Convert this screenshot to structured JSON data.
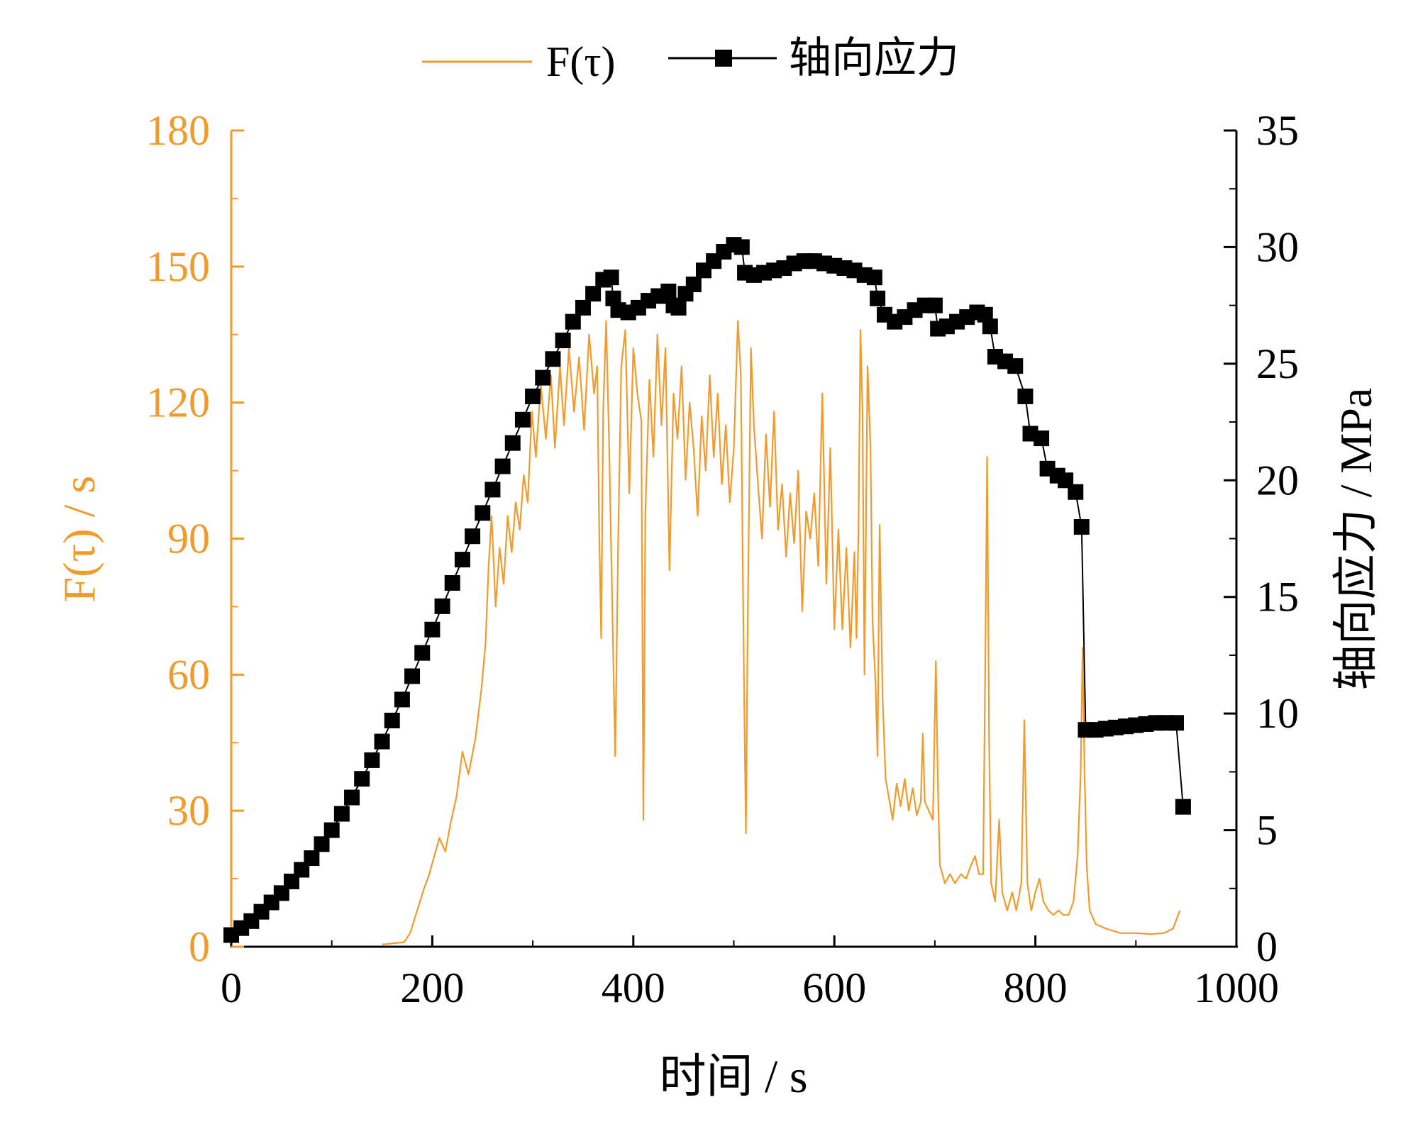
{
  "colors": {
    "orange": "#F39A2B",
    "black": "#000000"
  },
  "legend": {
    "orange_label": "F(τ)",
    "black_label": "轴向应力"
  },
  "chart_data": {
    "type": "line",
    "xlabel": "时间 / s",
    "xlim": [
      0,
      1000
    ],
    "x_ticks": [
      "0",
      "200",
      "400",
      "600",
      "800",
      "1000"
    ],
    "left_axis": {
      "label": "F(τ) / s",
      "ylim": [
        0,
        180
      ],
      "ticks": [
        "0",
        "30",
        "60",
        "90",
        "120",
        "150",
        "180"
      ]
    },
    "right_axis": {
      "label": "轴向应力 / MPa",
      "ylim": [
        0,
        35
      ],
      "ticks": [
        "0",
        "5",
        "10",
        "15",
        "20",
        "25",
        "30",
        "35"
      ]
    },
    "series": [
      {
        "name": "F(τ)",
        "axis": "left",
        "color": "#F39A2B",
        "points": [
          [
            150,
            0.5
          ],
          [
            172,
            1
          ],
          [
            178,
            3
          ],
          [
            185,
            8
          ],
          [
            192,
            13
          ],
          [
            197,
            16
          ],
          [
            202,
            20
          ],
          [
            207,
            24
          ],
          [
            213,
            21
          ],
          [
            218,
            27
          ],
          [
            224,
            33
          ],
          [
            230,
            43
          ],
          [
            236,
            38
          ],
          [
            243,
            46
          ],
          [
            249,
            57
          ],
          [
            253,
            67
          ],
          [
            256,
            84
          ],
          [
            259,
            95
          ],
          [
            263,
            75
          ],
          [
            267,
            88
          ],
          [
            271,
            80
          ],
          [
            275,
            95
          ],
          [
            279,
            87
          ],
          [
            283,
            98
          ],
          [
            287,
            92
          ],
          [
            291,
            104
          ],
          [
            295,
            98
          ],
          [
            299,
            118
          ],
          [
            303,
            108
          ],
          [
            308,
            124
          ],
          [
            313,
            112
          ],
          [
            318,
            126
          ],
          [
            322,
            110
          ],
          [
            327,
            128
          ],
          [
            331,
            115
          ],
          [
            336,
            132
          ],
          [
            341,
            118
          ],
          [
            346,
            130
          ],
          [
            351,
            114
          ],
          [
            356,
            135
          ],
          [
            361,
            122
          ],
          [
            364,
            128
          ],
          [
            366,
            93
          ],
          [
            368,
            68
          ],
          [
            370,
            118
          ],
          [
            373,
            138
          ],
          [
            376,
            110
          ],
          [
            379,
            76
          ],
          [
            382,
            42
          ],
          [
            385,
            90
          ],
          [
            388,
            128
          ],
          [
            392,
            136
          ],
          [
            396,
            100
          ],
          [
            400,
            132
          ],
          [
            404,
            122
          ],
          [
            408,
            116
          ],
          [
            410,
            28
          ],
          [
            412,
            96
          ],
          [
            416,
            125
          ],
          [
            420,
            108
          ],
          [
            424,
            135
          ],
          [
            428,
            115
          ],
          [
            432,
            132
          ],
          [
            436,
            83
          ],
          [
            440,
            122
          ],
          [
            444,
            112
          ],
          [
            448,
            128
          ],
          [
            452,
            103
          ],
          [
            456,
            120
          ],
          [
            460,
            110
          ],
          [
            464,
            95
          ],
          [
            468,
            117
          ],
          [
            472,
            105
          ],
          [
            476,
            126
          ],
          [
            480,
            108
          ],
          [
            484,
            122
          ],
          [
            488,
            102
          ],
          [
            492,
            115
          ],
          [
            496,
            98
          ],
          [
            500,
            110
          ],
          [
            504,
            138
          ],
          [
            507,
            126
          ],
          [
            510,
            60
          ],
          [
            512,
            25
          ],
          [
            514,
            75
          ],
          [
            517,
            132
          ],
          [
            520,
            115
          ],
          [
            524,
            102
          ],
          [
            528,
            90
          ],
          [
            532,
            113
          ],
          [
            536,
            97
          ],
          [
            540,
            118
          ],
          [
            544,
            92
          ],
          [
            548,
            102
          ],
          [
            552,
            86
          ],
          [
            556,
            100
          ],
          [
            560,
            89
          ],
          [
            564,
            105
          ],
          [
            568,
            74
          ],
          [
            572,
            96
          ],
          [
            576,
            90
          ],
          [
            580,
            100
          ],
          [
            584,
            84
          ],
          [
            588,
            122
          ],
          [
            592,
            80
          ],
          [
            596,
            110
          ],
          [
            600,
            70
          ],
          [
            604,
            92
          ],
          [
            608,
            70
          ],
          [
            612,
            88
          ],
          [
            616,
            66
          ],
          [
            620,
            87
          ],
          [
            622,
            68
          ],
          [
            624,
            92
          ],
          [
            626,
            136
          ],
          [
            628,
            118
          ],
          [
            630,
            60
          ],
          [
            633,
            128
          ],
          [
            636,
            110
          ],
          [
            638,
            72
          ],
          [
            641,
            58
          ],
          [
            643,
            42
          ],
          [
            645,
            93
          ],
          [
            648,
            55
          ],
          [
            651,
            37
          ],
          [
            655,
            32
          ],
          [
            658,
            28
          ],
          [
            662,
            36
          ],
          [
            666,
            31
          ],
          [
            670,
            37
          ],
          [
            674,
            30
          ],
          [
            678,
            35
          ],
          [
            682,
            29
          ],
          [
            686,
            32
          ],
          [
            688,
            47
          ],
          [
            690,
            32
          ],
          [
            694,
            30
          ],
          [
            698,
            28
          ],
          [
            701,
            63
          ],
          [
            703,
            35
          ],
          [
            705,
            18
          ],
          [
            710,
            14
          ],
          [
            715,
            16
          ],
          [
            720,
            14
          ],
          [
            726,
            16
          ],
          [
            731,
            15
          ],
          [
            736,
            18
          ],
          [
            740,
            20
          ],
          [
            744,
            16
          ],
          [
            748,
            16
          ],
          [
            750,
            60
          ],
          [
            752,
            108
          ],
          [
            754,
            45
          ],
          [
            756,
            14
          ],
          [
            760,
            10
          ],
          [
            764,
            28
          ],
          [
            767,
            12
          ],
          [
            772,
            8
          ],
          [
            777,
            12
          ],
          [
            781,
            8
          ],
          [
            786,
            14
          ],
          [
            789,
            50
          ],
          [
            792,
            14
          ],
          [
            796,
            8
          ],
          [
            800,
            12
          ],
          [
            804,
            15
          ],
          [
            808,
            10
          ],
          [
            813,
            8
          ],
          [
            818,
            7
          ],
          [
            823,
            8
          ],
          [
            828,
            7
          ],
          [
            833,
            7
          ],
          [
            838,
            10
          ],
          [
            842,
            20
          ],
          [
            845,
            38
          ],
          [
            847,
            66
          ],
          [
            849,
            38
          ],
          [
            851,
            18
          ],
          [
            854,
            8
          ],
          [
            860,
            5
          ],
          [
            870,
            4
          ],
          [
            885,
            3
          ],
          [
            900,
            3
          ],
          [
            915,
            2.8
          ],
          [
            928,
            3
          ],
          [
            937,
            4
          ],
          [
            942,
            7
          ],
          [
            944,
            8
          ]
        ]
      },
      {
        "name": "轴向应力",
        "axis": "right",
        "color": "#000000",
        "points": [
          [
            0,
            0.5
          ],
          [
            10,
            0.8
          ],
          [
            20,
            1.1
          ],
          [
            30,
            1.5
          ],
          [
            40,
            1.9
          ],
          [
            50,
            2.3
          ],
          [
            60,
            2.8
          ],
          [
            70,
            3.3
          ],
          [
            80,
            3.8
          ],
          [
            90,
            4.4
          ],
          [
            100,
            5.0
          ],
          [
            110,
            5.7
          ],
          [
            120,
            6.4
          ],
          [
            130,
            7.2
          ],
          [
            140,
            8.0
          ],
          [
            150,
            8.8
          ],
          [
            160,
            9.7
          ],
          [
            170,
            10.6
          ],
          [
            180,
            11.6
          ],
          [
            190,
            12.6
          ],
          [
            200,
            13.6
          ],
          [
            210,
            14.6
          ],
          [
            220,
            15.6
          ],
          [
            230,
            16.6
          ],
          [
            240,
            17.6
          ],
          [
            250,
            18.6
          ],
          [
            260,
            19.6
          ],
          [
            270,
            20.6
          ],
          [
            280,
            21.6
          ],
          [
            290,
            22.6
          ],
          [
            300,
            23.6
          ],
          [
            310,
            24.4
          ],
          [
            320,
            25.2
          ],
          [
            330,
            26.0
          ],
          [
            340,
            26.8
          ],
          [
            350,
            27.4
          ],
          [
            360,
            28.0
          ],
          [
            370,
            28.6
          ],
          [
            378,
            28.7
          ],
          [
            380,
            27.8
          ],
          [
            385,
            27.3
          ],
          [
            395,
            27.2
          ],
          [
            405,
            27.4
          ],
          [
            415,
            27.7
          ],
          [
            425,
            27.9
          ],
          [
            435,
            28.1
          ],
          [
            440,
            27.5
          ],
          [
            445,
            27.4
          ],
          [
            452,
            28.0
          ],
          [
            460,
            28.4
          ],
          [
            470,
            29.0
          ],
          [
            480,
            29.4
          ],
          [
            490,
            29.8
          ],
          [
            500,
            30.1
          ],
          [
            508,
            30.0
          ],
          [
            511,
            28.9
          ],
          [
            520,
            28.8
          ],
          [
            530,
            28.9
          ],
          [
            540,
            29.0
          ],
          [
            550,
            29.1
          ],
          [
            560,
            29.3
          ],
          [
            570,
            29.4
          ],
          [
            580,
            29.4
          ],
          [
            590,
            29.3
          ],
          [
            600,
            29.2
          ],
          [
            610,
            29.1
          ],
          [
            620,
            29.0
          ],
          [
            630,
            28.8
          ],
          [
            640,
            28.7
          ],
          [
            643,
            27.8
          ],
          [
            650,
            27.1
          ],
          [
            660,
            26.8
          ],
          [
            670,
            27.0
          ],
          [
            680,
            27.3
          ],
          [
            690,
            27.5
          ],
          [
            700,
            27.5
          ],
          [
            703,
            26.5
          ],
          [
            712,
            26.6
          ],
          [
            722,
            26.8
          ],
          [
            732,
            27.0
          ],
          [
            742,
            27.2
          ],
          [
            750,
            27.1
          ],
          [
            755,
            26.6
          ],
          [
            760,
            25.3
          ],
          [
            770,
            25.1
          ],
          [
            780,
            24.9
          ],
          [
            790,
            23.6
          ],
          [
            795,
            22.0
          ],
          [
            806,
            21.8
          ],
          [
            812,
            20.5
          ],
          [
            822,
            20.2
          ],
          [
            830,
            20.0
          ],
          [
            840,
            19.5
          ],
          [
            846,
            18.0
          ],
          [
            850,
            9.3
          ],
          [
            860,
            9.3
          ],
          [
            870,
            9.35
          ],
          [
            880,
            9.4
          ],
          [
            890,
            9.45
          ],
          [
            900,
            9.5
          ],
          [
            910,
            9.55
          ],
          [
            920,
            9.6
          ],
          [
            930,
            9.6
          ],
          [
            940,
            9.6
          ],
          [
            947,
            6.0
          ]
        ]
      }
    ]
  }
}
